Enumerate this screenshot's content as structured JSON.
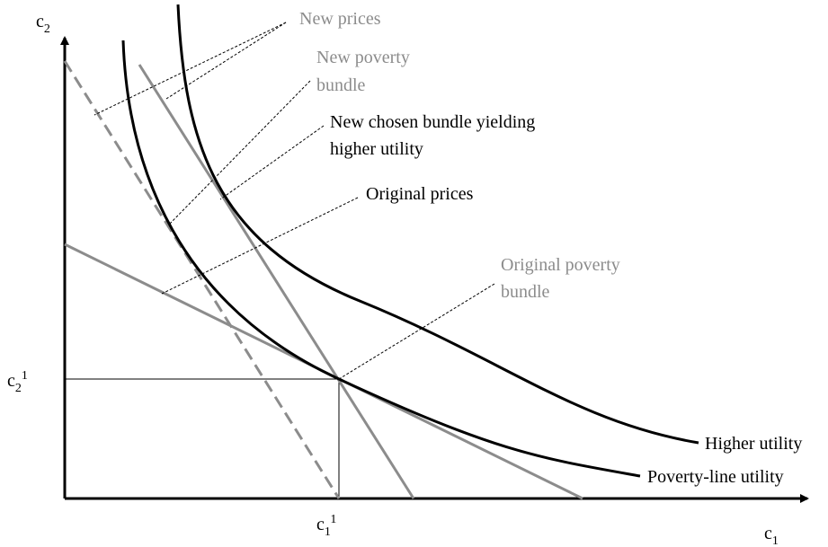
{
  "axes": {
    "y_label": {
      "base": "c",
      "sub": "2"
    },
    "x_label": {
      "base": "c",
      "sub": "1"
    },
    "y_tick": {
      "base": "c",
      "sub": "2",
      "sup": "1"
    },
    "x_tick": {
      "base": "c",
      "sub": "1",
      "sup": "1"
    }
  },
  "annotations": {
    "new_prices": [
      "New prices"
    ],
    "new_poverty_bundle": [
      "New poverty",
      "bundle"
    ],
    "new_chosen_bundle": [
      "New chosen bundle yielding",
      "higher utility"
    ],
    "original_prices": [
      "Original prices"
    ],
    "original_poverty_bundle": [
      "Original poverty",
      "bundle"
    ]
  },
  "curves": {
    "higher_utility": "Higher utility",
    "poverty_line_utility": "Poverty-line utility"
  }
}
